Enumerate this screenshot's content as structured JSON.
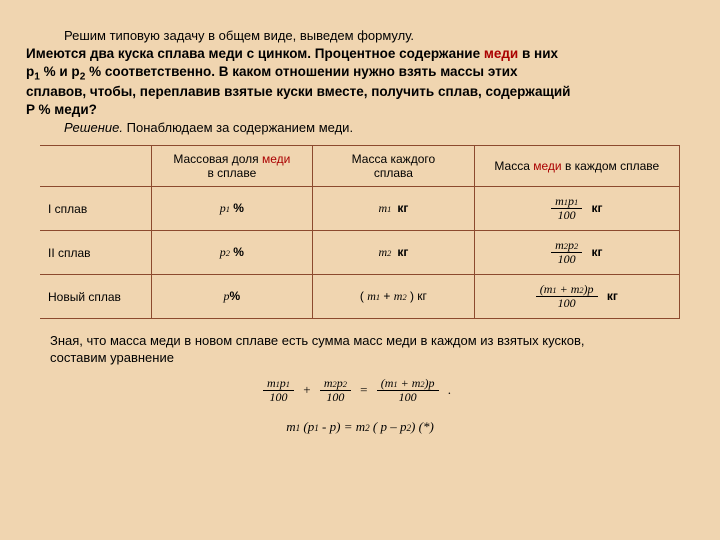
{
  "intro": "Решим типовую задачу в общем виде, выведем формулу.",
  "problem_l1a": "Имеются два куска сплава меди с цинком. Процентное содержание ",
  "problem_l1b": "меди",
  "problem_l1c": " в них",
  "problem_l2a": "р",
  "problem_l2b": " % и р",
  "problem_l2c": " % соответственно. В каком отношении нужно взять массы этих",
  "problem_l3": "сплавов, чтобы, переплавив взятые куски вместе, получить сплав, содержащий",
  "problem_l4": "P % меди?",
  "sol_label_a": "Решение.",
  "sol_label_b": "Понаблюдаем за содержанием меди.",
  "th_c1a": "Массовая доля ",
  "th_c1b": "меди",
  "th_c1c": "в сплаве",
  "th_c2a": "Масса каждого",
  "th_c2b": "сплава",
  "th_c3a": "Масса ",
  "th_c3b": "меди",
  "th_c3c": " в каждом сплаве",
  "r1": "I сплав",
  "r2": "II сплав",
  "r3": "Новый сплав",
  "p1": "p",
  "pct": "%",
  "m": "m",
  "kg": "кг",
  "hundred": "100",
  "mass_sum_a": "( ",
  "mass_sum_b": " + ",
  "mass_sum_c": " ) кг",
  "f3num_a": "(",
  "f3num_b": " + ",
  "f3num_c": ")",
  "after_a": "Зная, что масса меди в новом сплаве есть сумма масс меди в каждом из взятых кусков,",
  "after_b": "составим уравнение",
  "plus": "+",
  "eq": "=",
  "dot": ".",
  "eq2_a": "m",
  "eq2_b": " (p",
  "eq2_c": " - p) = m",
  "eq2_d": " ( p – p",
  "eq2_e": ") (*)",
  "s1": "1",
  "s2": "2",
  "colors": {
    "background": "#f0d5b0",
    "border": "#8c4a2e",
    "accent": "#aa0000",
    "text": "#000000"
  }
}
